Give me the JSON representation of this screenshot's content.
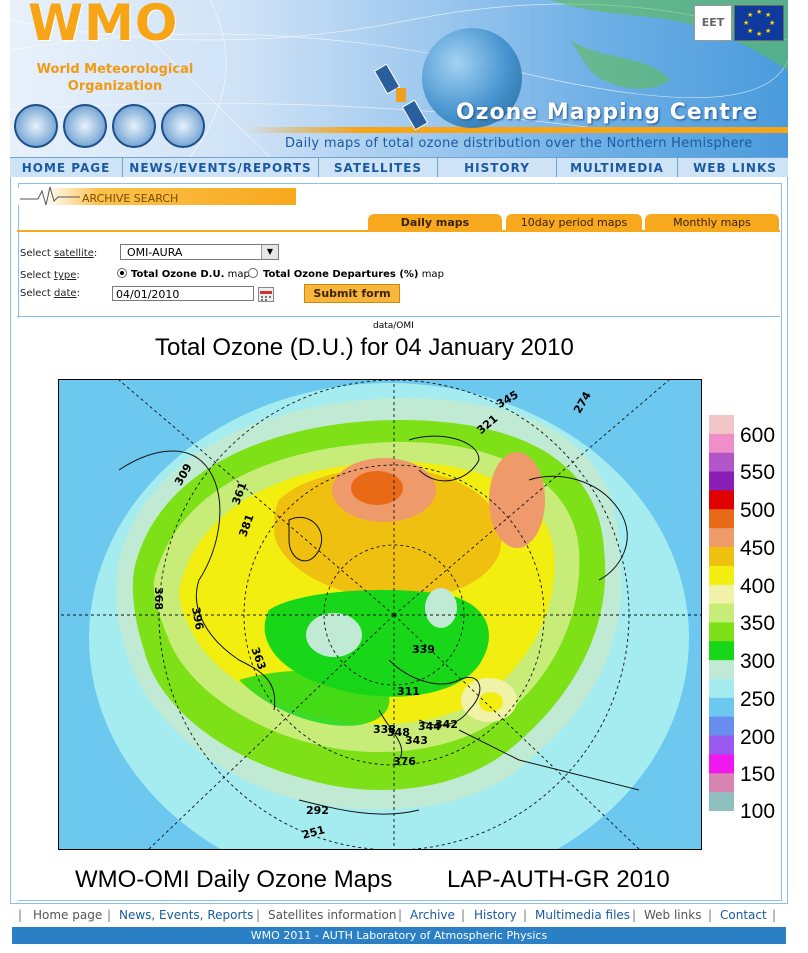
{
  "banner": {
    "logo": "WMO",
    "org_line1": "World Meteorological",
    "org_line2": "Organization",
    "title": "Ozone Mapping Centre",
    "subtitle": "Daily maps of total ozone distribution over the Northern Hemisphere"
  },
  "nav": {
    "items": [
      "HOME PAGE",
      "NEWS/EVENTS/REPORTS",
      "SATELLITES",
      "HISTORY",
      "MULTIMEDIA",
      "WEB LINKS"
    ]
  },
  "archive": {
    "header": "ARCHIVE SEARCH",
    "tabs": [
      "Daily maps",
      "10day period maps",
      "Monthly maps"
    ],
    "active_tab": "Daily maps"
  },
  "form": {
    "satellite_label_pre": "Select ",
    "satellite_label_u": "satellite",
    "satellite_label_post": ":",
    "satellite_value": "OMI-AURA",
    "type_label_pre": "Select ",
    "type_label_u": "type",
    "type_label_post": ":",
    "type_option1_bold": "Total Ozone D.U.",
    "type_option1_rest": " map",
    "type_option2_bold": "Total Ozone Departures (%)",
    "type_option2_rest": " map",
    "date_label_pre": "Select ",
    "date_label_u": "date",
    "date_label_post": ":",
    "date_value": "04/01/2010",
    "submit_label": "Submit form"
  },
  "map": {
    "topnote": "data/OMI",
    "title": "Total Ozone (D.U.) for 04 January 2010",
    "footer_left": "WMO-OMI Daily Ozone Maps",
    "footer_right": "LAP-AUTH-GR 2010",
    "contour_labels": [
      "309",
      "361",
      "381",
      "368",
      "396",
      "363",
      "345",
      "321",
      "274",
      "339",
      "311",
      "338",
      "348",
      "343",
      "344",
      "342",
      "376",
      "292",
      "251"
    ],
    "legend_values": [
      "600",
      "550",
      "500",
      "450",
      "400",
      "350",
      "300",
      "250",
      "200",
      "150",
      "100"
    ],
    "legend_colors": [
      "#f2c6c6",
      "#ef8fc7",
      "#b256c9",
      "#8a1eb6",
      "#e00000",
      "#e86a16",
      "#ee9a6a",
      "#f0c010",
      "#f2ee10",
      "#f0f2a8",
      "#c8ec78",
      "#7ee016",
      "#18d618",
      "#c0ead4",
      "#a4ecf0",
      "#6cc8ee",
      "#6a8ef0",
      "#9a5af0",
      "#f018ee",
      "#d884b0",
      "#8ec0c0"
    ]
  },
  "bottom_links": {
    "items": [
      "Home page",
      "News, Events, Reports",
      "Satellites information",
      "Archive",
      "History",
      "Multimedia files",
      "Web links",
      "Contact"
    ]
  },
  "footer": {
    "text": "WMO 2011 - AUTH Laboratory of Atmospheric Physics"
  }
}
